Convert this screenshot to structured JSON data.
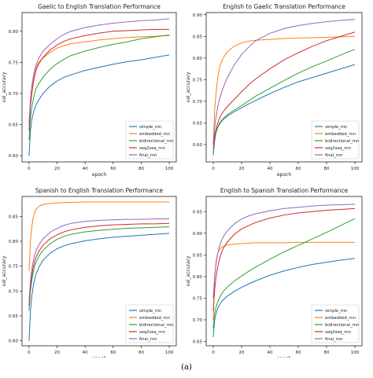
{
  "figure": {
    "caption": "(a)"
  },
  "legend_labels": [
    "simple_rnn",
    "embedded_rnn",
    "bidirectional_rnn",
    "seq2seq_rnn",
    "final_rnn"
  ],
  "colors": {
    "simple_rnn": "#1f77b4",
    "embedded_rnn": "#ff7f0e",
    "bidirectional_rnn": "#2ca02c",
    "seq2seq_rnn": "#d62728",
    "final_rnn": "#9467bd"
  },
  "chart_data": [
    {
      "type": "line",
      "title": "Gaelic to English Translation Performance",
      "xlabel": "epoch",
      "ylabel": "val_accuracy",
      "xlim": [
        -5,
        105
      ],
      "ylim": [
        0.59,
        0.83
      ],
      "xticks": [
        0,
        20,
        40,
        60,
        80,
        100
      ],
      "yticks": [
        0.6,
        0.65,
        0.7,
        0.75,
        0.8
      ],
      "ytick_labels": [
        "0.60",
        "0.65",
        "0.70",
        "0.75",
        "0.80"
      ],
      "legend": "lower-right",
      "grid": false,
      "x": [
        0,
        1,
        2,
        3,
        4,
        5,
        7,
        10,
        15,
        20,
        25,
        30,
        40,
        50,
        60,
        70,
        80,
        90,
        100
      ],
      "series": [
        {
          "name": "simple_rnn",
          "color": "#1f77b4",
          "values": [
            0.6,
            0.64,
            0.658,
            0.668,
            0.675,
            0.682,
            0.69,
            0.7,
            0.712,
            0.72,
            0.726,
            0.73,
            0.737,
            0.742,
            0.747,
            0.751,
            0.754,
            0.758,
            0.762
          ]
        },
        {
          "name": "embedded_rnn",
          "color": "#ff7f0e",
          "values": [
            0.655,
            0.69,
            0.71,
            0.725,
            0.735,
            0.742,
            0.75,
            0.757,
            0.766,
            0.773,
            0.777,
            0.78,
            0.783,
            0.786,
            0.788,
            0.79,
            0.791,
            0.792,
            0.793
          ]
        },
        {
          "name": "bidirectional_rnn",
          "color": "#2ca02c",
          "values": [
            0.625,
            0.66,
            0.678,
            0.69,
            0.7,
            0.708,
            0.716,
            0.726,
            0.739,
            0.748,
            0.755,
            0.761,
            0.768,
            0.774,
            0.779,
            0.783,
            0.788,
            0.791,
            0.794
          ]
        },
        {
          "name": "seq2seq_rnn",
          "color": "#d62728",
          "values": [
            0.64,
            0.68,
            0.7,
            0.716,
            0.728,
            0.737,
            0.748,
            0.758,
            0.77,
            0.778,
            0.784,
            0.788,
            0.793,
            0.797,
            0.8,
            0.801,
            0.802,
            0.803,
            0.803
          ]
        },
        {
          "name": "final_rnn",
          "color": "#9467bd",
          "values": [
            0.65,
            0.69,
            0.712,
            0.727,
            0.738,
            0.746,
            0.757,
            0.768,
            0.779,
            0.788,
            0.795,
            0.8,
            0.806,
            0.81,
            0.813,
            0.815,
            0.817,
            0.818,
            0.82
          ]
        }
      ]
    },
    {
      "type": "line",
      "title": "English to Gaelic Translation Performance",
      "xlabel": "epoch",
      "ylabel": "val_accuracy",
      "xlim": [
        -5,
        105
      ],
      "ylim": [
        0.56,
        0.905
      ],
      "xticks": [
        0,
        20,
        40,
        60,
        80,
        100
      ],
      "yticks": [
        0.6,
        0.65,
        0.7,
        0.75,
        0.8,
        0.85,
        0.9
      ],
      "ytick_labels": [
        "0.60",
        "0.65",
        "0.70",
        "0.75",
        "0.80",
        "0.85",
        "0.90"
      ],
      "legend": "lower-right",
      "grid": false,
      "x": [
        0,
        1,
        2,
        3,
        4,
        5,
        7,
        10,
        15,
        20,
        25,
        30,
        40,
        50,
        60,
        70,
        80,
        90,
        100
      ],
      "series": [
        {
          "name": "simple_rnn",
          "color": "#1f77b4",
          "values": [
            0.575,
            0.61,
            0.628,
            0.638,
            0.645,
            0.65,
            0.658,
            0.666,
            0.676,
            0.685,
            0.694,
            0.702,
            0.718,
            0.732,
            0.745,
            0.755,
            0.765,
            0.775,
            0.785
          ]
        },
        {
          "name": "embedded_rnn",
          "color": "#ff7f0e",
          "values": [
            0.6,
            0.68,
            0.72,
            0.75,
            0.77,
            0.785,
            0.8,
            0.815,
            0.828,
            0.835,
            0.839,
            0.841,
            0.843,
            0.845,
            0.846,
            0.847,
            0.848,
            0.849,
            0.85
          ]
        },
        {
          "name": "bidirectional_rnn",
          "color": "#2ca02c",
          "values": [
            0.58,
            0.615,
            0.63,
            0.64,
            0.647,
            0.652,
            0.66,
            0.669,
            0.68,
            0.69,
            0.701,
            0.712,
            0.73,
            0.748,
            0.765,
            0.78,
            0.793,
            0.807,
            0.82
          ]
        },
        {
          "name": "seq2seq_rnn",
          "color": "#d62728",
          "values": [
            0.59,
            0.62,
            0.637,
            0.648,
            0.657,
            0.665,
            0.676,
            0.688,
            0.705,
            0.722,
            0.738,
            0.752,
            0.775,
            0.796,
            0.812,
            0.827,
            0.84,
            0.85,
            0.86
          ]
        },
        {
          "name": "final_rnn",
          "color": "#9467bd",
          "values": [
            0.6,
            0.64,
            0.665,
            0.685,
            0.7,
            0.712,
            0.732,
            0.755,
            0.785,
            0.808,
            0.825,
            0.84,
            0.857,
            0.868,
            0.875,
            0.88,
            0.884,
            0.887,
            0.889
          ]
        }
      ]
    },
    {
      "type": "line",
      "title": "Spanish to English Translation Performance",
      "xlabel": "epoch",
      "ylabel": "val_accuracy",
      "xlim": [
        -5,
        105
      ],
      "ylim": [
        0.59,
        0.89
      ],
      "xticks": [
        0,
        20,
        40,
        60,
        80,
        100
      ],
      "yticks": [
        0.6,
        0.65,
        0.7,
        0.75,
        0.8,
        0.85
      ],
      "ytick_labels": [
        "0.60",
        "0.65",
        "0.70",
        "0.75",
        "0.80",
        "0.85"
      ],
      "legend": "lower-right",
      "grid": false,
      "x": [
        0,
        1,
        2,
        3,
        4,
        5,
        7,
        10,
        15,
        20,
        25,
        30,
        40,
        50,
        60,
        70,
        80,
        90,
        100
      ],
      "series": [
        {
          "name": "simple_rnn",
          "color": "#1f77b4",
          "values": [
            0.6,
            0.66,
            0.69,
            0.71,
            0.724,
            0.734,
            0.748,
            0.762,
            0.776,
            0.785,
            0.791,
            0.795,
            0.801,
            0.805,
            0.808,
            0.81,
            0.812,
            0.814,
            0.816
          ]
        },
        {
          "name": "embedded_rnn",
          "color": "#ff7f0e",
          "values": [
            0.74,
            0.8,
            0.83,
            0.848,
            0.858,
            0.864,
            0.87,
            0.874,
            0.876,
            0.877,
            0.878,
            0.878,
            0.879,
            0.879,
            0.879,
            0.879,
            0.879,
            0.879,
            0.879
          ]
        },
        {
          "name": "bidirectional_rnn",
          "color": "#2ca02c",
          "values": [
            0.66,
            0.7,
            0.722,
            0.738,
            0.75,
            0.758,
            0.77,
            0.782,
            0.795,
            0.804,
            0.81,
            0.814,
            0.819,
            0.822,
            0.824,
            0.826,
            0.827,
            0.828,
            0.829
          ]
        },
        {
          "name": "seq2seq_rnn",
          "color": "#d62728",
          "values": [
            0.67,
            0.71,
            0.732,
            0.748,
            0.76,
            0.768,
            0.78,
            0.792,
            0.805,
            0.813,
            0.819,
            0.823,
            0.828,
            0.831,
            0.833,
            0.834,
            0.835,
            0.835,
            0.836
          ]
        },
        {
          "name": "final_rnn",
          "color": "#9467bd",
          "values": [
            0.68,
            0.72,
            0.744,
            0.76,
            0.772,
            0.781,
            0.793,
            0.805,
            0.818,
            0.826,
            0.832,
            0.836,
            0.84,
            0.842,
            0.843,
            0.844,
            0.844,
            0.845,
            0.845
          ]
        }
      ]
    },
    {
      "type": "line",
      "title": "English to Spanish Translation Performance",
      "xlabel": "epoch",
      "ylabel": "val_accuracy",
      "xlim": [
        -5,
        105
      ],
      "ylim": [
        0.64,
        0.985
      ],
      "xticks": [
        0,
        20,
        40,
        60,
        80,
        100
      ],
      "yticks": [
        0.65,
        0.7,
        0.75,
        0.8,
        0.85,
        0.9,
        0.95
      ],
      "ytick_labels": [
        "0.65",
        "0.70",
        "0.75",
        "0.80",
        "0.85",
        "0.90",
        "0.95"
      ],
      "legend": "lower-right",
      "grid": false,
      "x": [
        0,
        1,
        2,
        3,
        4,
        5,
        7,
        10,
        15,
        20,
        25,
        30,
        40,
        50,
        60,
        70,
        80,
        90,
        100
      ],
      "series": [
        {
          "name": "simple_rnn",
          "color": "#1f77b4",
          "values": [
            0.66,
            0.7,
            0.715,
            0.725,
            0.732,
            0.738,
            0.746,
            0.755,
            0.766,
            0.775,
            0.783,
            0.79,
            0.803,
            0.813,
            0.821,
            0.828,
            0.833,
            0.838,
            0.842
          ]
        },
        {
          "name": "embedded_rnn",
          "color": "#ff7f0e",
          "values": [
            0.7,
            0.8,
            0.835,
            0.852,
            0.86,
            0.865,
            0.87,
            0.873,
            0.875,
            0.876,
            0.877,
            0.878,
            0.878,
            0.878,
            0.879,
            0.879,
            0.879,
            0.879,
            0.879
          ]
        },
        {
          "name": "bidirectional_rnn",
          "color": "#2ca02c",
          "values": [
            0.68,
            0.715,
            0.73,
            0.74,
            0.748,
            0.755,
            0.765,
            0.776,
            0.79,
            0.801,
            0.812,
            0.822,
            0.84,
            0.857,
            0.872,
            0.887,
            0.902,
            0.918,
            0.934
          ]
        },
        {
          "name": "seq2seq_rnn",
          "color": "#d62728",
          "values": [
            0.72,
            0.77,
            0.8,
            0.82,
            0.835,
            0.848,
            0.865,
            0.88,
            0.898,
            0.91,
            0.918,
            0.925,
            0.935,
            0.942,
            0.947,
            0.95,
            0.953,
            0.955,
            0.957
          ]
        },
        {
          "name": "final_rnn",
          "color": "#9467bd",
          "values": [
            0.75,
            0.8,
            0.83,
            0.85,
            0.865,
            0.876,
            0.892,
            0.906,
            0.922,
            0.933,
            0.94,
            0.945,
            0.952,
            0.957,
            0.96,
            0.963,
            0.965,
            0.966,
            0.967
          ]
        }
      ]
    }
  ]
}
